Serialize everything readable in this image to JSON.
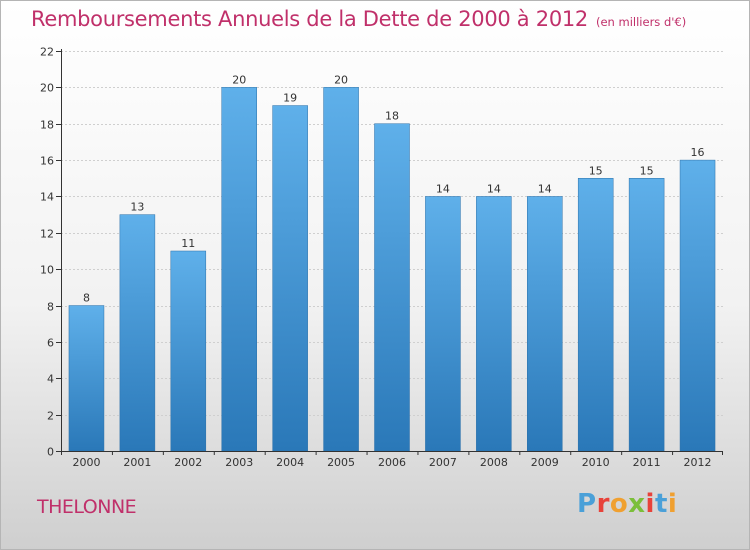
{
  "header": {
    "title": "Remboursements Annuels de la Dette de 2000 à 2012",
    "unit": "(en milliers d'€)"
  },
  "footer": {
    "commune": "THELONNE",
    "logo_text": "Proxiti",
    "logo_colors": [
      "#4aa0d8",
      "#e8423a",
      "#f0a030",
      "#7bbf3a",
      "#e8423a",
      "#4aa0d8",
      "#f0a030"
    ]
  },
  "colors": {
    "bar_light": "#5fb0ea",
    "bar_dark": "#2a78b8",
    "title": "#c0306a",
    "axis": "#333333",
    "grid": "#cfcfcf"
  },
  "chart_data": {
    "type": "bar",
    "title": "Remboursements Annuels de la Dette de 2000 à 2012",
    "subtitle": "(en milliers d'€)",
    "categories": [
      "2000",
      "2001",
      "2002",
      "2003",
      "2004",
      "2005",
      "2006",
      "2007",
      "2008",
      "2009",
      "2010",
      "2011",
      "2012"
    ],
    "values": [
      8,
      13,
      11,
      20,
      19,
      20,
      18,
      14,
      14,
      14,
      15,
      15,
      16
    ],
    "ylim": [
      0,
      22
    ],
    "yticks": [
      0,
      2,
      4,
      6,
      8,
      10,
      12,
      14,
      16,
      18,
      20,
      22
    ],
    "grid": true,
    "xlabel": "",
    "ylabel": ""
  }
}
